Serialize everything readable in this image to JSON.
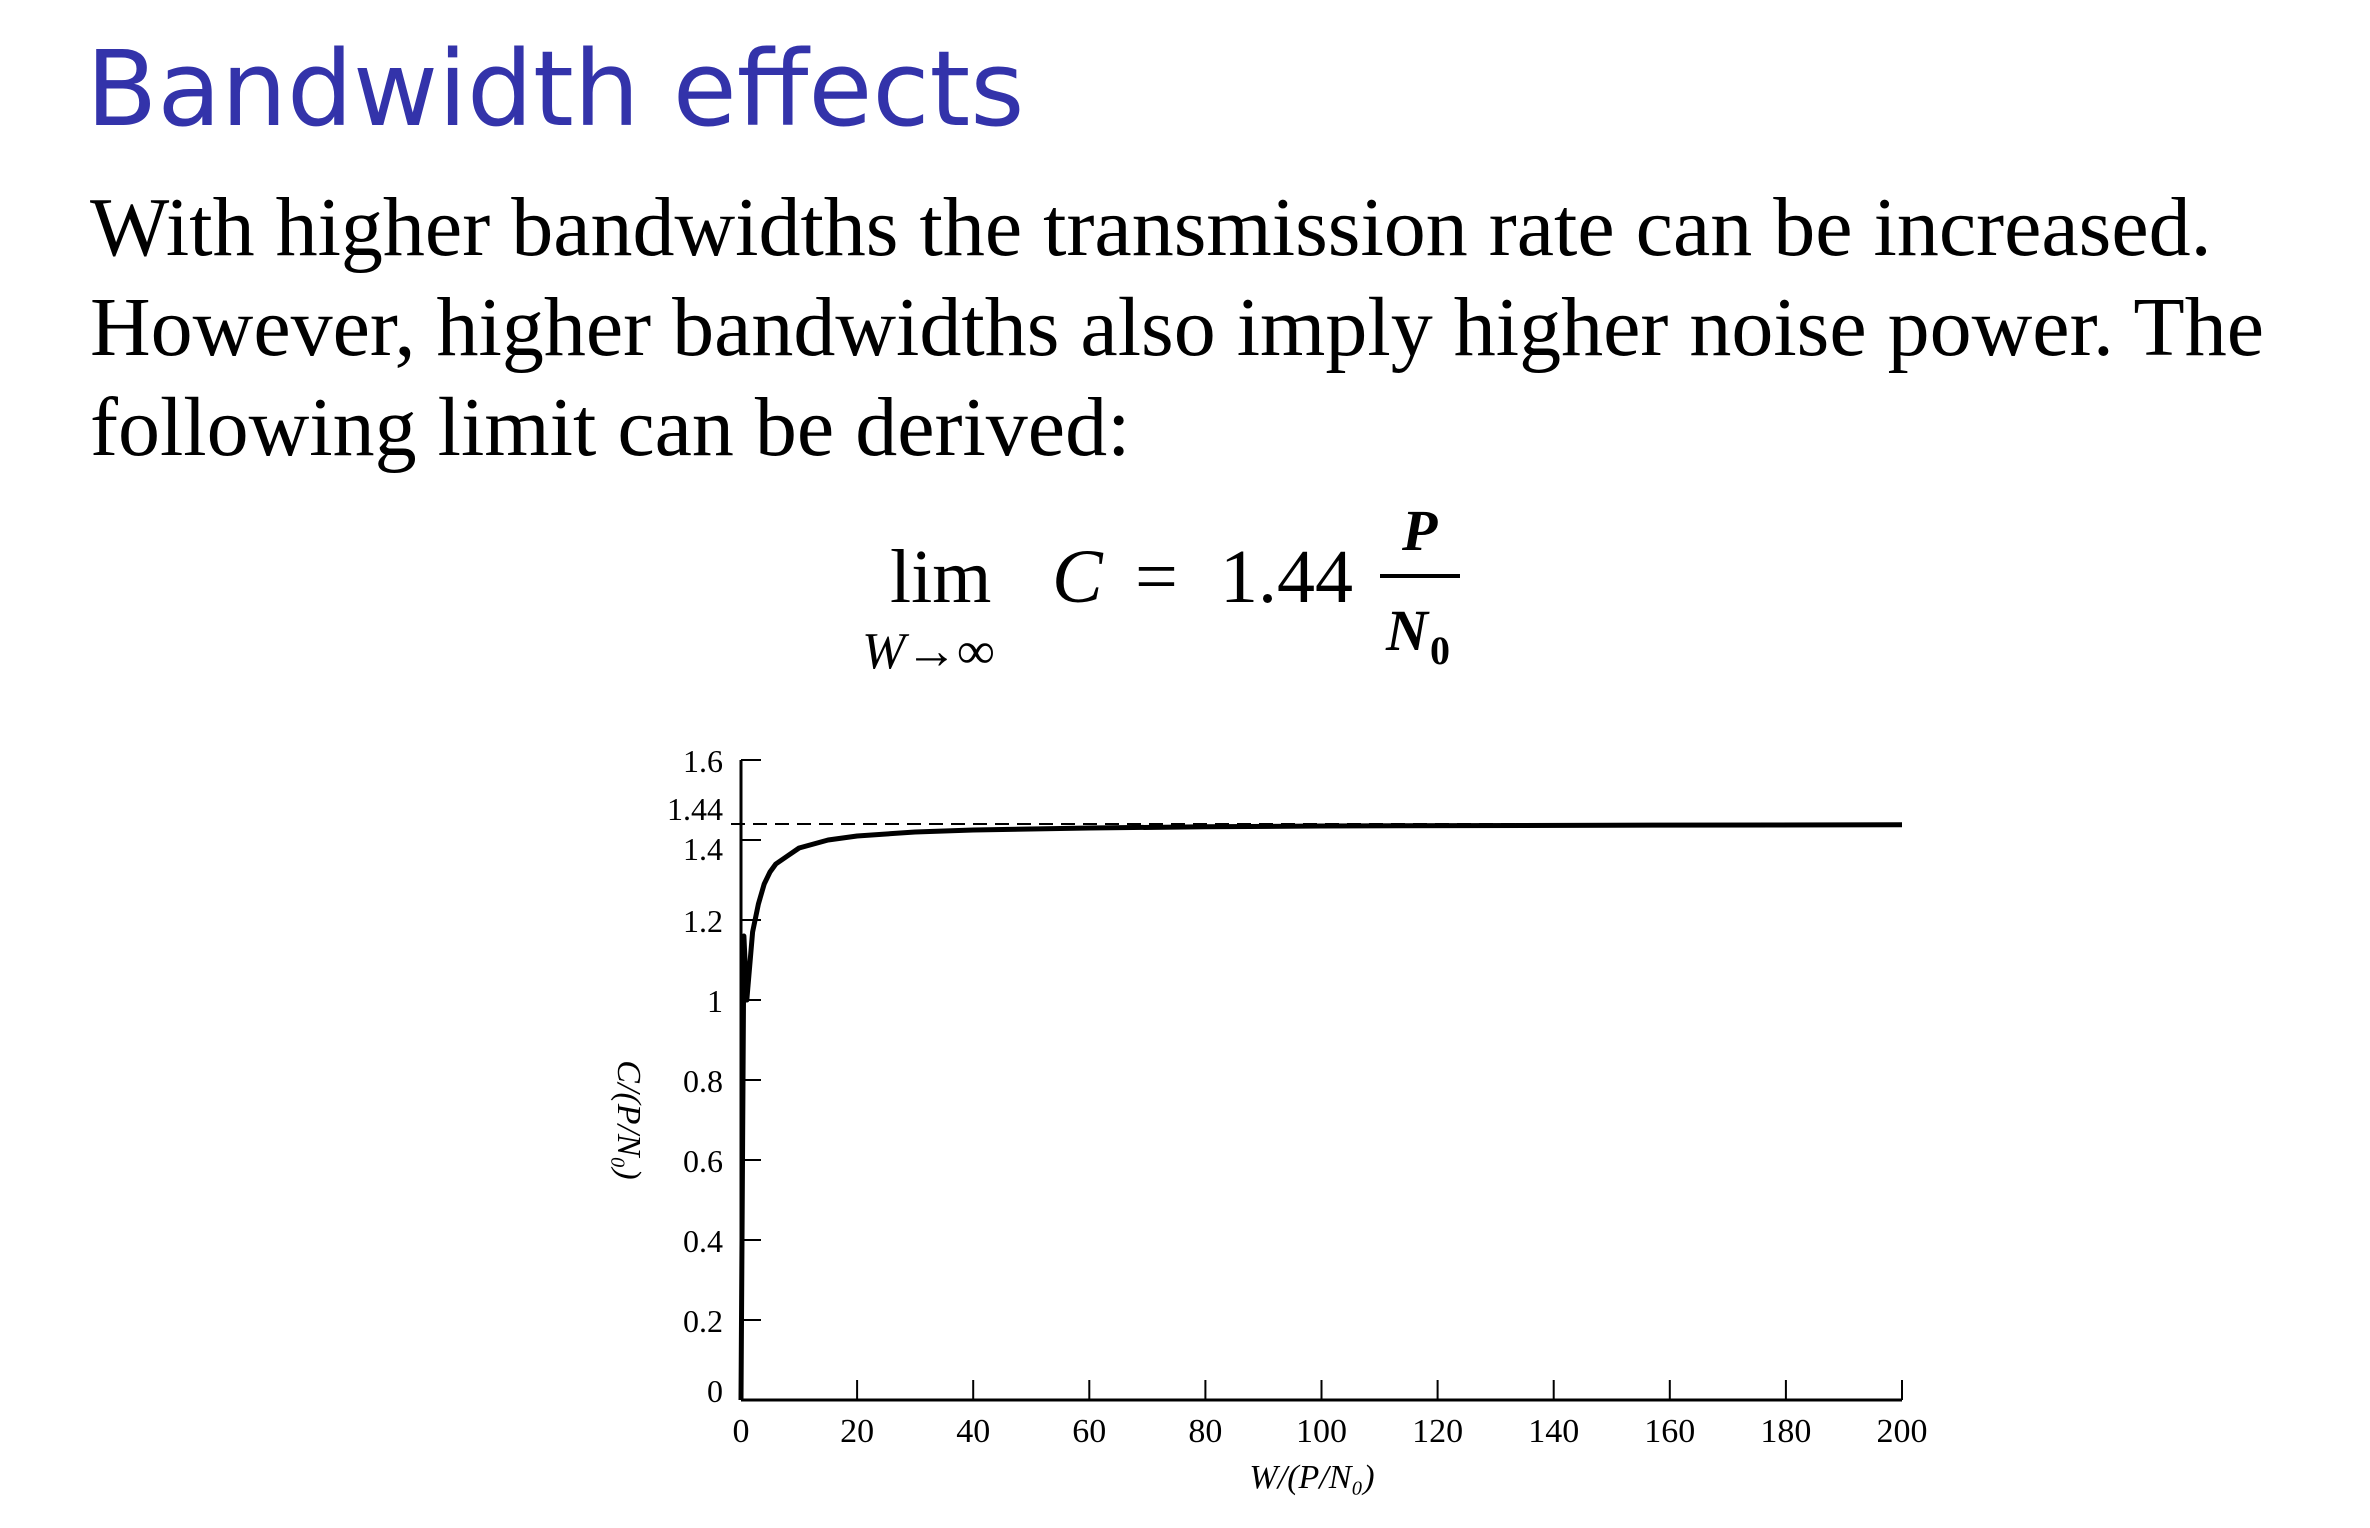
{
  "slide": {
    "title": "Bandwidth effects",
    "body_lines": [
      "With higher bandwidths the transmission rate can be increased.",
      "However, higher bandwidths also imply higher noise power.  The",
      "following limit can be derived:"
    ]
  },
  "formula": {
    "lim": "lim",
    "subscript": "W→∞",
    "lhs": "C",
    "equals": "=",
    "coefficient": "1.44",
    "numerator": "P",
    "denominator_base": "N",
    "denominator_sub": "0"
  },
  "colors": {
    "title": "#3333aa",
    "text": "#000000"
  },
  "chart_data": {
    "type": "line",
    "xlabel": "W/(P/N₀)",
    "ylabel": "C/(P/N₀)",
    "xlim": [
      0,
      200
    ],
    "ylim": [
      0,
      1.6
    ],
    "x_ticks": [
      0,
      20,
      40,
      60,
      80,
      100,
      120,
      140,
      160,
      180,
      200
    ],
    "x_tick_labels": [
      "0",
      "20",
      "40",
      "60",
      "80",
      "100",
      "120",
      "140",
      "160",
      "180",
      "200"
    ],
    "y_ticks": [
      0,
      0.2,
      0.4,
      0.6,
      0.8,
      1,
      1.2,
      1.4,
      1.44,
      1.6
    ],
    "y_tick_labels": [
      "0",
      "0.2",
      "0.4",
      "0.6",
      "0.8",
      "1",
      "1.2",
      "1.4",
      "1.44",
      "1.6"
    ],
    "asymptote": {
      "y": 1.44,
      "style": "dashed"
    },
    "series": [
      {
        "style": "solid",
        "x": [
          0.5,
          1,
          2,
          3,
          4,
          5,
          6,
          8,
          10,
          15,
          20,
          30,
          40,
          60,
          80,
          100,
          150,
          200
        ],
        "y": [
          1.16,
          1.0,
          1.17,
          1.24,
          1.29,
          1.32,
          1.34,
          1.36,
          1.38,
          1.4,
          1.41,
          1.42,
          1.425,
          1.43,
          1.433,
          1.435,
          1.437,
          1.438
        ]
      }
    ],
    "grid": false
  }
}
